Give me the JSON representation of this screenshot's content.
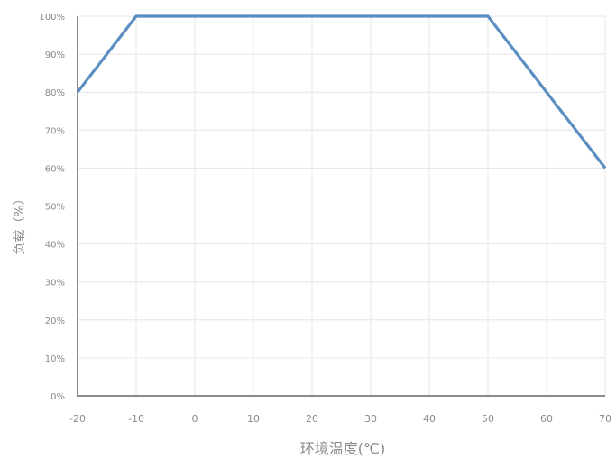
{
  "chart_data": {
    "type": "line",
    "title": "",
    "xlabel": "环境温度(℃)",
    "ylabel": "负载（%）",
    "x_ticks": [
      -20,
      -10,
      0,
      10,
      20,
      30,
      40,
      50,
      60,
      70
    ],
    "y_ticks": [
      "0%",
      "10%",
      "20%",
      "30%",
      "40%",
      "50%",
      "60%",
      "70%",
      "80%",
      "90%",
      "100%"
    ],
    "xlim": [
      -20,
      70
    ],
    "ylim": [
      0,
      100
    ],
    "grid": true,
    "series": [
      {
        "color": "#5b8ec1",
        "x": [
          -20,
          -10,
          50,
          70
        ],
        "y": [
          80,
          100,
          100,
          60
        ]
      }
    ]
  }
}
